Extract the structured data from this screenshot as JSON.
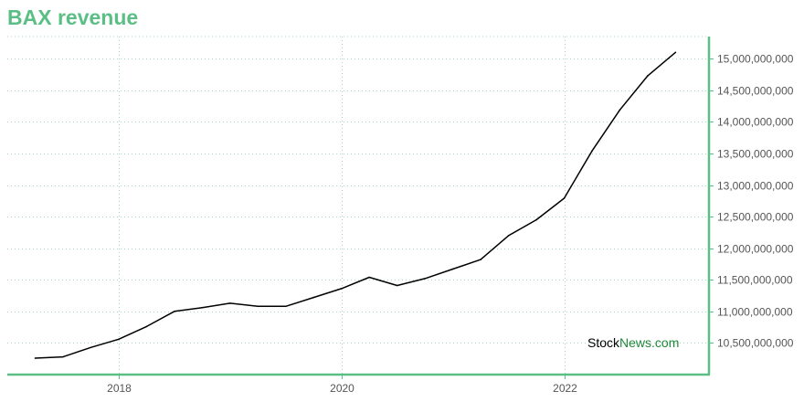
{
  "chart_data": {
    "type": "line",
    "title": "BAX revenue",
    "xlabel": "",
    "ylabel": "",
    "x_range": [
      2017.0,
      2023.3
    ],
    "ylim": [
      10000000000,
      15350000000
    ],
    "x_ticks": [
      {
        "value": 2018,
        "label": "2018"
      },
      {
        "value": 2020,
        "label": "2020"
      },
      {
        "value": 2022,
        "label": "2022"
      }
    ],
    "y_ticks": [
      {
        "value": 10500000000,
        "label": "10,500,000,000"
      },
      {
        "value": 11000000000,
        "label": "11,000,000,000"
      },
      {
        "value": 11500000000,
        "label": "11,500,000,000"
      },
      {
        "value": 12000000000,
        "label": "12,000,000,000"
      },
      {
        "value": 12500000000,
        "label": "12,500,000,000"
      },
      {
        "value": 13000000000,
        "label": "13,000,000,000"
      },
      {
        "value": 13500000000,
        "label": "13,500,000,000"
      },
      {
        "value": 14000000000,
        "label": "14,000,000,000"
      },
      {
        "value": 14500000000,
        "label": "14,500,000,000"
      },
      {
        "value": 15000000000,
        "label": "15,000,000,000"
      }
    ],
    "grid": true,
    "y_axis_side": "right",
    "series": [
      {
        "name": "",
        "color": "#000000",
        "points": [
          {
            "x": 2017.25,
            "y": 10260000000
          },
          {
            "x": 2017.5,
            "y": 10280000000
          },
          {
            "x": 2017.75,
            "y": 10430000000
          },
          {
            "x": 2018.0,
            "y": 10560000000
          },
          {
            "x": 2018.25,
            "y": 10760000000
          },
          {
            "x": 2018.5,
            "y": 11000000000
          },
          {
            "x": 2018.75,
            "y": 11060000000
          },
          {
            "x": 2019.0,
            "y": 11130000000
          },
          {
            "x": 2019.25,
            "y": 11080000000
          },
          {
            "x": 2019.5,
            "y": 11080000000
          },
          {
            "x": 2019.75,
            "y": 11220000000
          },
          {
            "x": 2020.0,
            "y": 11360000000
          },
          {
            "x": 2020.25,
            "y": 11540000000
          },
          {
            "x": 2020.5,
            "y": 11410000000
          },
          {
            "x": 2020.75,
            "y": 11520000000
          },
          {
            "x": 2021.0,
            "y": 11670000000
          },
          {
            "x": 2021.25,
            "y": 11820000000
          },
          {
            "x": 2021.5,
            "y": 12200000000
          },
          {
            "x": 2021.75,
            "y": 12450000000
          },
          {
            "x": 2022.0,
            "y": 12790000000
          },
          {
            "x": 2022.25,
            "y": 13540000000
          },
          {
            "x": 2022.5,
            "y": 14190000000
          },
          {
            "x": 2022.75,
            "y": 14730000000
          },
          {
            "x": 2023.0,
            "y": 15100000000
          }
        ]
      }
    ],
    "colors": {
      "axis": "#5bbf85",
      "grid": "#a9d8c4",
      "title": "#5bbf85"
    }
  },
  "watermark": {
    "part1": "Stock",
    "part2": "News.com"
  }
}
